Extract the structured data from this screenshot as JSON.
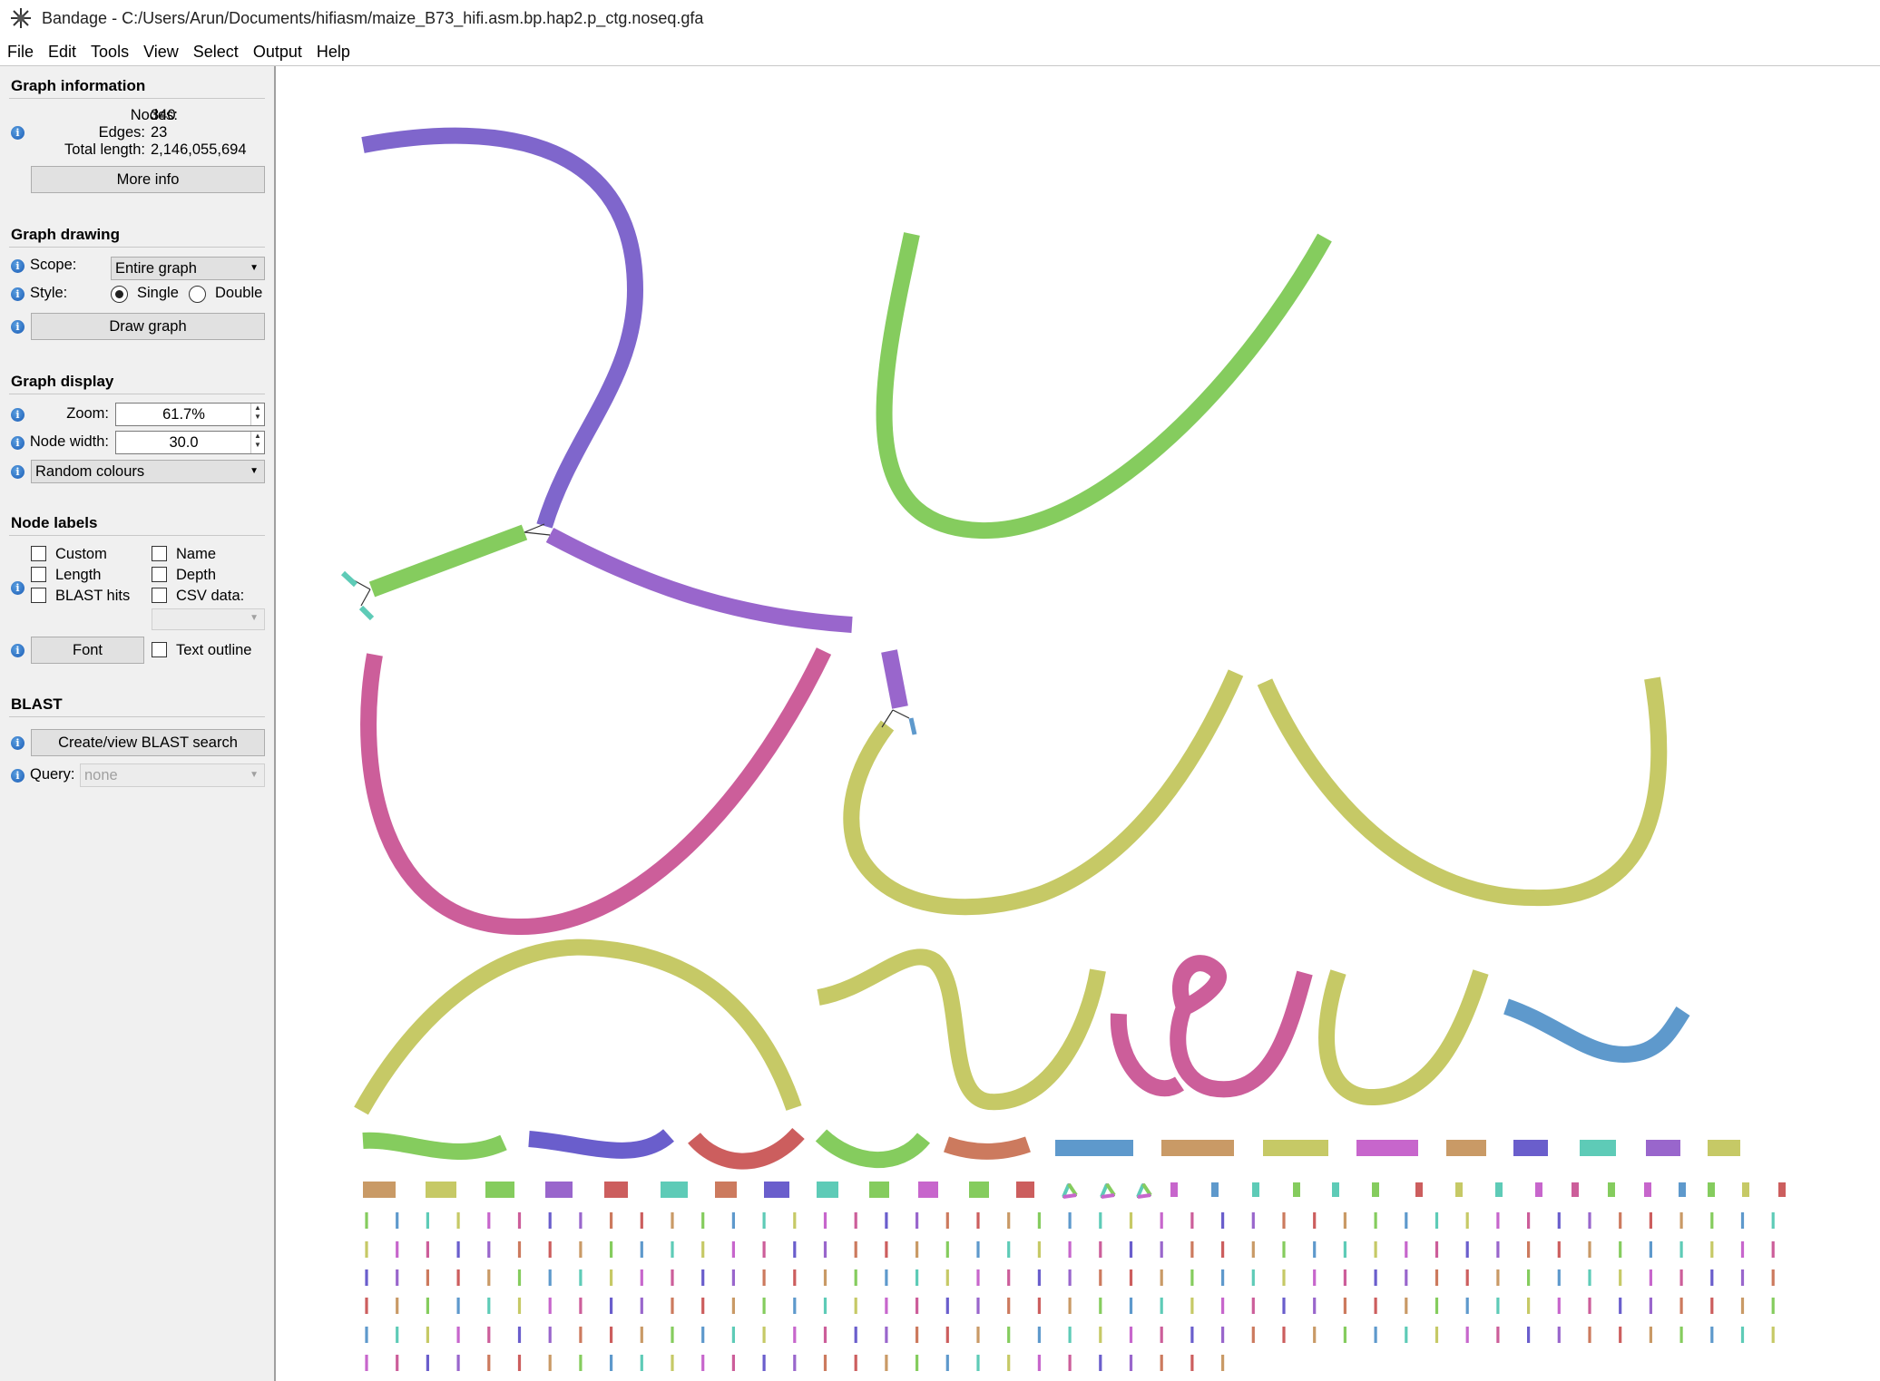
{
  "window": {
    "title": "Bandage - C:/Users/Arun/Documents/hifiasm/maize_B73_hifi.asm.bp.hap2.p_ctg.noseq.gfa"
  },
  "menu": [
    "File",
    "Edit",
    "Tools",
    "View",
    "Select",
    "Output",
    "Help"
  ],
  "sidebar": {
    "graph_information": {
      "title": "Graph information",
      "nodes_label": "Nodes:",
      "nodes_value": "340",
      "edges_label": "Edges:",
      "edges_value": "23",
      "total_length_label": "Total length:",
      "total_length_value": "2,146,055,694",
      "more_info_button": "More info"
    },
    "graph_drawing": {
      "title": "Graph drawing",
      "scope_label": "Scope:",
      "scope_value": "Entire graph",
      "style_label": "Style:",
      "style_single": "Single",
      "style_double": "Double",
      "style_selected": "Single",
      "draw_button": "Draw graph"
    },
    "graph_display": {
      "title": "Graph display",
      "zoom_label": "Zoom:",
      "zoom_value": "61.7%",
      "node_width_label": "Node width:",
      "node_width_value": "30.0",
      "colour_scheme": "Random colours"
    },
    "node_labels": {
      "title": "Node labels",
      "custom": "Custom",
      "length": "Length",
      "blast_hits": "BLAST hits",
      "name": "Name",
      "depth": "Depth",
      "csv_data": "CSV data:",
      "font_button": "Font",
      "text_outline": "Text outline"
    },
    "blast": {
      "title": "BLAST",
      "create_button": "Create/view BLAST search",
      "query_label": "Query:",
      "query_value": "none"
    }
  },
  "icons": {
    "app": "bandage-app-icon",
    "info": "info-icon",
    "dropdown": "chevron-down-icon",
    "spin": "spin-arrows-icon"
  },
  "colors": {
    "purple": "#7f66cc",
    "purple2": "#9966cc",
    "green": "#85cc5e",
    "pink": "#cc5e9a",
    "olive": "#c6c966",
    "blue": "#5e99cc",
    "red": "#cc5e5e",
    "orange": "#cc7a5e",
    "tan": "#c99a66",
    "teal": "#5ecbb7",
    "magenta": "#c766cc",
    "indigo": "#6a5ecc"
  }
}
